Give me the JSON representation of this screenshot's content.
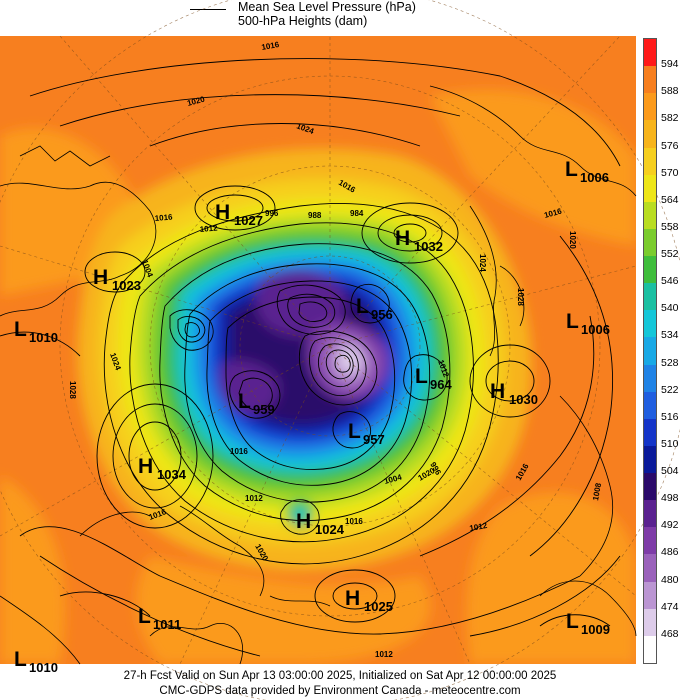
{
  "legend": {
    "line1": "Mean Sea Level Pressure (hPa)",
    "line2": "500-hPa Heights (dam)"
  },
  "colorbar": {
    "labels": [
      "594",
      "588",
      "582",
      "576",
      "570",
      "564",
      "558",
      "552",
      "546",
      "540",
      "534",
      "528",
      "522",
      "516",
      "510",
      "504",
      "498",
      "492",
      "486",
      "480",
      "474",
      "468"
    ],
    "colors": [
      "#ff1a1a",
      "#f77f1f",
      "#fb9a1c",
      "#f7b41c",
      "#f6cf1f",
      "#eee619",
      "#b9dd22",
      "#7bcc2e",
      "#3fbe3c",
      "#1bc0a2",
      "#14c7d9",
      "#18a9e6",
      "#1f83e6",
      "#1f5ee0",
      "#1435c9",
      "#0a1a9a",
      "#2a0a6a",
      "#5a2290",
      "#7e3ca8",
      "#9a62bb",
      "#bb96d3",
      "#ddccea",
      "#ffffff"
    ]
  },
  "systems": [
    {
      "letter": "H",
      "value": "1027"
    },
    {
      "letter": "H",
      "value": "1032"
    },
    {
      "letter": "L",
      "value": "1006"
    },
    {
      "letter": "H",
      "value": "1023"
    },
    {
      "letter": "L",
      "value": "1010"
    },
    {
      "letter": "L",
      "value": "956"
    },
    {
      "letter": "L",
      "value": "1006"
    },
    {
      "letter": "L",
      "value": "964"
    },
    {
      "letter": "H",
      "value": "1030"
    },
    {
      "letter": "L",
      "value": "959"
    },
    {
      "letter": "L",
      "value": "957"
    },
    {
      "letter": "H",
      "value": "1034"
    },
    {
      "letter": "H",
      "value": "1024"
    },
    {
      "letter": "H",
      "value": "1025"
    },
    {
      "letter": "L",
      "value": "1011"
    },
    {
      "letter": "L",
      "value": "1009"
    },
    {
      "letter": "L",
      "value": "1010"
    }
  ],
  "isobar_labels": [
    "1016",
    "1020",
    "1024",
    "1016",
    "1016",
    "1012",
    "1004",
    "996",
    "988",
    "984",
    "1012",
    "1016",
    "1024",
    "1028",
    "1020",
    "1024",
    "1028",
    "1012",
    "1004",
    "996",
    "1020",
    "1016",
    "1012",
    "1008",
    "1016",
    "1020",
    "1016",
    "1016",
    "1012"
  ],
  "footer": {
    "line1": "27-h Fcst Valid on Sun Apr 13 03:00:00 2025, Initialized on Sat Apr 12 00:00:00 2025",
    "line2": "CMC-GDPS data provided by Environment Canada - meteocentre.com"
  }
}
